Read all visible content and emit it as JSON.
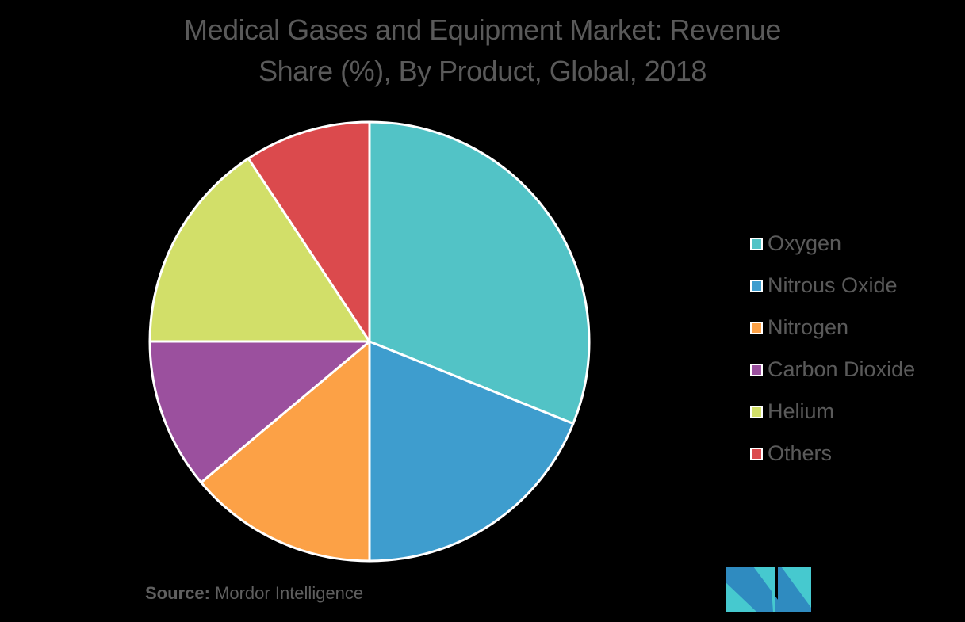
{
  "title": {
    "line1": "Medical Gases and Equipment Market: Revenue",
    "line2": "Share (%), By Product, Global, 2018"
  },
  "legend": [
    {
      "label": "Oxygen",
      "color": "#52c3c6"
    },
    {
      "label": "Nitrous Oxide",
      "color": "#3e9dce"
    },
    {
      "label": "Nitrogen",
      "color": "#fca146"
    },
    {
      "label": "Carbon Dioxide",
      "color": "#9b509e"
    },
    {
      "label": "Helium",
      "color": "#d2df69"
    },
    {
      "label": "Others",
      "color": "#db4a4d"
    }
  ],
  "source": {
    "prefix": "Source:",
    "name": "Mordor Intelligence"
  },
  "logo": {
    "name": "mordor-intelligence-logo",
    "colors": [
      "#2f8bc0",
      "#46c9cf"
    ]
  },
  "chart_data": {
    "type": "pie",
    "title": "Medical Gases and Equipment Market: Revenue Share (%), By Product, Global, 2018",
    "categories": [
      "Oxygen",
      "Nitrous Oxide",
      "Nitrogen",
      "Carbon Dioxide",
      "Helium",
      "Others"
    ],
    "values": [
      31.1,
      18.9,
      13.9,
      11.1,
      15.7,
      9.3
    ],
    "colors": [
      "#52c3c6",
      "#3e9dce",
      "#fca146",
      "#9b509e",
      "#d2df69",
      "#db4a4d"
    ],
    "start_angle_deg": 0,
    "direction": "clockwise",
    "legend_position": "right",
    "data_labels": false
  }
}
